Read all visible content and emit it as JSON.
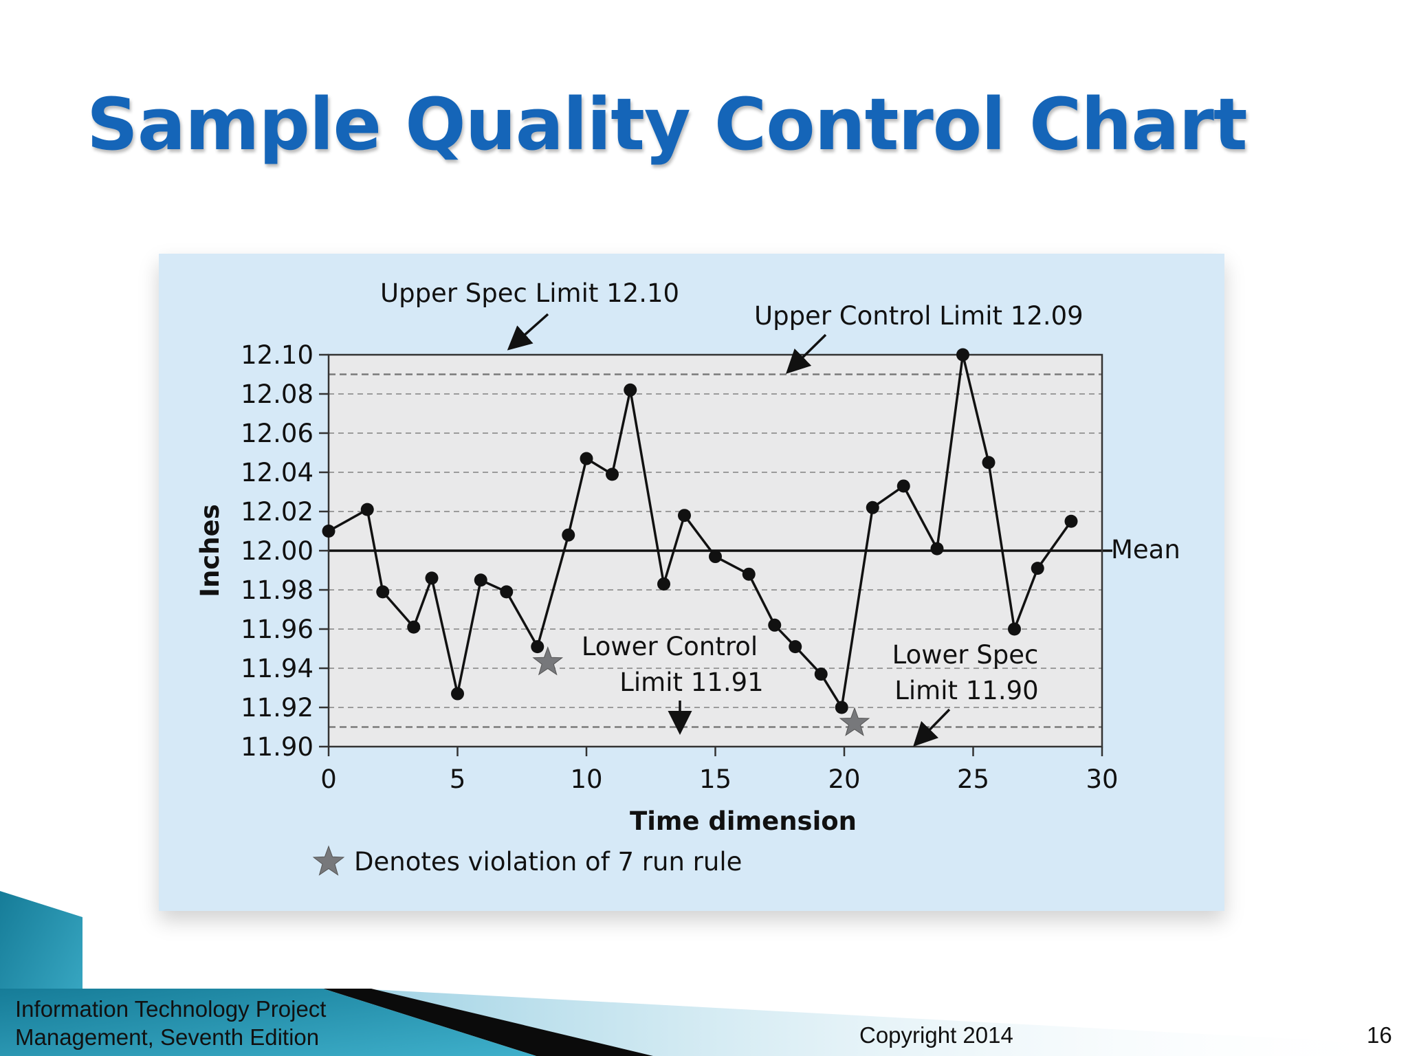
{
  "slide": {
    "title": "Sample Quality Control Chart",
    "footer": {
      "book_line1": "Information Technology Project",
      "book_line2": "Management, Seventh Edition",
      "copyright": "Copyright 2014",
      "page_number": "16"
    }
  },
  "colors": {
    "title": "#1565b8",
    "panel_background": "#d6e9f7",
    "plot_background": "#e9e9ea",
    "line": "#111111",
    "star": "#77787b",
    "footer_teal": "#1a8aa6"
  },
  "chart_data": {
    "type": "line",
    "title": "",
    "xlabel": "Time dimension",
    "ylabel": "Inches",
    "xlim": [
      0,
      30
    ],
    "ylim": [
      11.9,
      12.1
    ],
    "xticks": [
      "0",
      "5",
      "10",
      "15",
      "20",
      "25",
      "30"
    ],
    "yticks": [
      "12.10",
      "12.08",
      "12.06",
      "12.04",
      "12.02",
      "12.00",
      "11.98",
      "11.96",
      "11.94",
      "11.92",
      "11.90"
    ],
    "grid": "dashed horizontal",
    "series": [
      {
        "points": [
          [
            0,
            12.01
          ],
          [
            1.5,
            12.021
          ],
          [
            2.1,
            11.979
          ],
          [
            3.3,
            11.961
          ],
          [
            4,
            11.986
          ],
          [
            5,
            11.927
          ],
          [
            5.9,
            11.985
          ],
          [
            6.9,
            11.979
          ],
          [
            8.1,
            11.951
          ],
          [
            9.3,
            12.008
          ],
          [
            10,
            12.047
          ],
          [
            11,
            12.039
          ],
          [
            11.7,
            12.082
          ],
          [
            13,
            11.983
          ],
          [
            13.8,
            12.018
          ],
          [
            15,
            11.997
          ],
          [
            16.3,
            11.988
          ],
          [
            17.3,
            11.962
          ],
          [
            18.1,
            11.951
          ],
          [
            19.1,
            11.937
          ],
          [
            19.9,
            11.92
          ],
          [
            21.1,
            12.022
          ],
          [
            22.3,
            12.033
          ],
          [
            23.6,
            12.001
          ],
          [
            24.6,
            12.1
          ],
          [
            25.6,
            12.045
          ],
          [
            26.6,
            11.96
          ],
          [
            27.5,
            11.991
          ],
          [
            28.8,
            12.015
          ]
        ]
      }
    ],
    "reference_lines": [
      {
        "label": "Upper Spec Limit 12.10",
        "value": 12.1,
        "style": "solid"
      },
      {
        "label": "Upper Control Limit 12.09",
        "value": 12.09,
        "style": "dashed"
      },
      {
        "label": "Mean",
        "value": 12.0,
        "style": "solid"
      },
      {
        "label": "Lower Control Limit 11.91",
        "value": 11.91,
        "style": "dashed"
      },
      {
        "label": "Lower Spec Limit 11.90",
        "value": 11.9,
        "style": "solid"
      }
    ],
    "annotations": {
      "upper_spec": "Upper Spec Limit 12.10",
      "upper_control": "Upper Control Limit 12.09",
      "mean": "Mean",
      "lower_control_line1": "Lower Control",
      "lower_control_line2": "Limit 11.91",
      "lower_spec_line1": "Lower Spec",
      "lower_spec_line2": "Limit 11.90"
    },
    "violations": [
      [
        8.5,
        11.943
      ],
      [
        20.4,
        11.912
      ]
    ],
    "legend": {
      "label": "Denotes violation of 7 run rule",
      "placement": "bottom-left"
    }
  }
}
